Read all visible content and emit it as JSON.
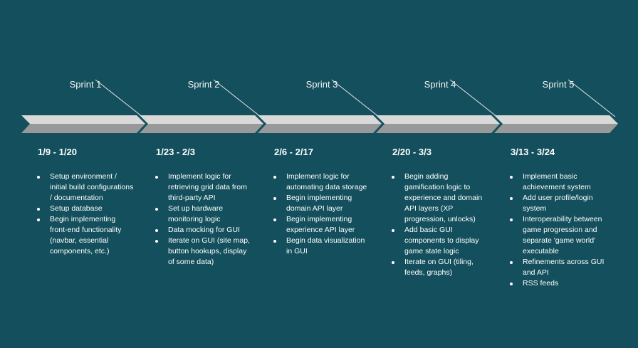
{
  "colors": {
    "background": "#134f5c",
    "arrow_top": "#d9d9d9",
    "arrow_bottom": "#999999",
    "text": "#ffffff"
  },
  "sprints": [
    {
      "title": "Sprint 1",
      "dates": "1/9 - 1/20",
      "tasks": [
        "Setup environment / initial build configurations / documentation",
        "Setup database",
        "Begin implementing front-end functionality (navbar, essential components, etc.)"
      ]
    },
    {
      "title": "Sprint 2",
      "dates": "1/23 - 2/3",
      "tasks": [
        "Implement logic for retrieving grid data from third-party API",
        "Set up hardware monitoring logic",
        "Data mocking for GUI",
        "Iterate on GUI (site map, button hookups, display of some data)"
      ]
    },
    {
      "title": "Sprint 3",
      "dates": "2/6 - 2/17",
      "tasks": [
        "Implement logic for automating data storage",
        "Begin implementing domain API layer",
        "Begin implementing experience API layer",
        "Begin data visualization in GUI"
      ]
    },
    {
      "title": "Sprint 4",
      "dates": "2/20 - 3/3",
      "tasks": [
        "Begin adding gamification logic to experience and domain API layers (XP progression, unlocks)",
        "Add basic GUI components to display game state logic",
        "Iterate on GUI (tiling, feeds, graphs)"
      ]
    },
    {
      "title": "Sprint 5",
      "dates": "3/13 - 3/24",
      "tasks": [
        "Implement basic achievement system",
        "Add user profile/login system",
        "Interoperability between game progression and separate 'game world' executable",
        "Refinements across GUI and API",
        "RSS feeds"
      ]
    }
  ]
}
